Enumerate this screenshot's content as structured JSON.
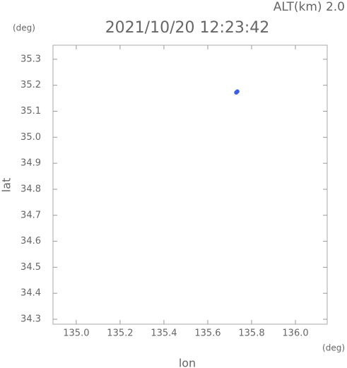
{
  "chart_data": {
    "type": "scatter",
    "title": "2021/10/20 12:23:42",
    "subtitle": "ALT(km) 2.0",
    "y_unit": "(deg)",
    "x_unit": "(deg)",
    "xlabel": "lon",
    "ylabel": "lat",
    "color": "#3b5fe0",
    "x": [
      135.73,
      135.735
    ],
    "values": [
      35.172,
      35.176
    ],
    "xlim": [
      134.894,
      136.145
    ],
    "ylim": [
      34.281,
      35.354
    ],
    "xticks": [
      {
        "value": 135.0,
        "label": "135.0"
      },
      135.2,
      135.4,
      135.6,
      135.8,
      {
        "value": 136.0,
        "label": "136.0"
      }
    ],
    "yticks": [
      34.3,
      34.4,
      34.5,
      34.6,
      34.7,
      34.8,
      34.9,
      {
        "value": 35.0,
        "label": "35.0"
      },
      35.1,
      35.2,
      35.3
    ],
    "grid": false
  }
}
